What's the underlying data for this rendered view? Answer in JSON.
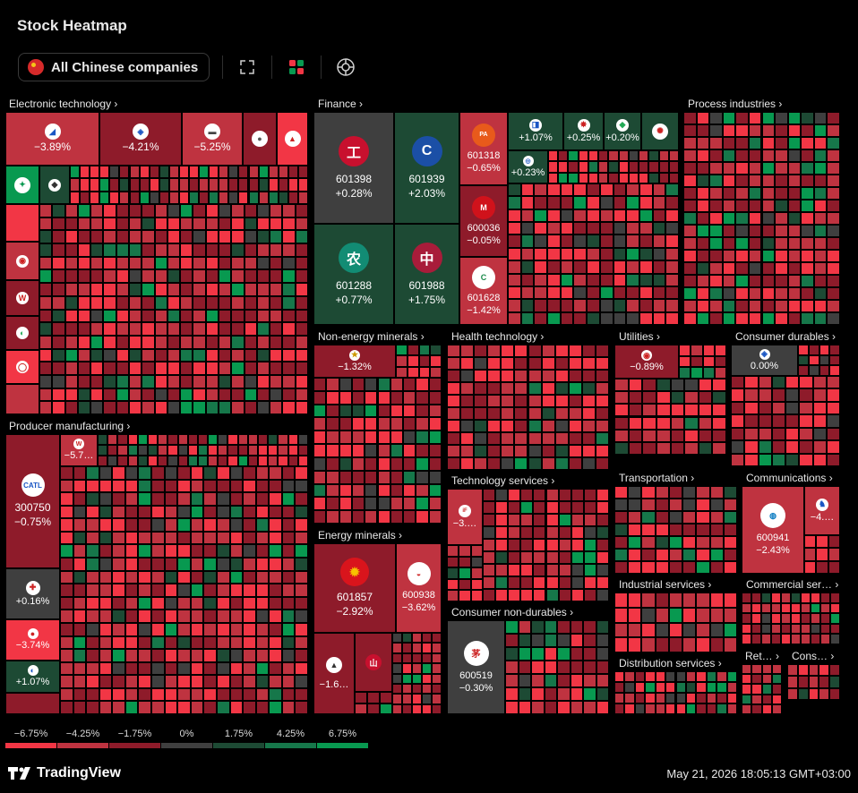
{
  "app": {
    "title": "Stock Heatmap"
  },
  "toolbar": {
    "scope_label": "All Chinese companies",
    "icons": [
      "china-flag-icon",
      "fullscreen-icon",
      "color-palette-icon",
      "crosshair-icon"
    ]
  },
  "colors": {
    "dark_red": "#8e1b2a",
    "mid_red": "#bf3340",
    "bright_red": "#f23645",
    "neutral": "#3f3f3f",
    "dark_green": "#1d4a34",
    "mid_green": "#16774a",
    "bright_green": "#089950"
  },
  "sectors": {
    "electronic_technology": {
      "label": "Electronic technology ›"
    },
    "finance": {
      "label": "Finance ›"
    },
    "process_industries": {
      "label": "Process industries ›"
    },
    "producer_manufacturing": {
      "label": "Producer manufacturing ›"
    },
    "non_energy_minerals": {
      "label": "Non-energy minerals ›"
    },
    "health_technology": {
      "label": "Health technology ›"
    },
    "utilities": {
      "label": "Utilities ›"
    },
    "consumer_durables": {
      "label": "Consumer durables ›"
    },
    "technology_services": {
      "label": "Technology services ›"
    },
    "transportation": {
      "label": "Transportation ›"
    },
    "communications": {
      "label": "Communications ›"
    },
    "energy_minerals": {
      "label": "Energy minerals ›"
    },
    "industrial_services": {
      "label": "Industrial services ›"
    },
    "commercial_services": {
      "label": "Commercial ser… ›"
    },
    "consumer_non_durables": {
      "label": "Consumer non-durables ›"
    },
    "distribution_services": {
      "label": "Distribution services ›"
    },
    "retail_trade": {
      "label": "Ret… ›"
    },
    "consumer_services": {
      "label": "Cons… ›"
    }
  },
  "tiles": {
    "et1": {
      "change": "−3.89%"
    },
    "et2": {
      "change": "−4.21%"
    },
    "et3": {
      "change": "−5.25%"
    },
    "fin1": {
      "symbol": "601398",
      "change": "+0.28%"
    },
    "fin2": {
      "symbol": "601939",
      "change": "+2.03%"
    },
    "fin3": {
      "symbol": "601288",
      "change": "+0.77%"
    },
    "fin4": {
      "symbol": "601988",
      "change": "+1.75%"
    },
    "fin5": {
      "symbol": "601318",
      "change": "−0.65%"
    },
    "fin6": {
      "symbol": "600036",
      "change": "−0.05%"
    },
    "fin7": {
      "symbol": "601628",
      "change": "−1.42%"
    },
    "fin8": {
      "change": "+1.07%"
    },
    "fin9": {
      "change": "+0.25%"
    },
    "fin10": {
      "change": "+0.20%"
    },
    "fin11": {
      "change": "+0.23%"
    },
    "pm1": {
      "symbol": "300750",
      "change": "−0.75%"
    },
    "pm2": {
      "change": "−5.7…"
    },
    "pm3": {
      "change": "+0.16%"
    },
    "pm4": {
      "change": "−3.74%"
    },
    "pm5": {
      "change": "+1.07%"
    },
    "nem1": {
      "change": "−1.32%"
    },
    "ut1": {
      "change": "−0.89%"
    },
    "cd1": {
      "change": "0.00%"
    },
    "ts1": {
      "change": "−3.…"
    },
    "com1": {
      "symbol": "600941",
      "change": "−2.43%"
    },
    "com2": {
      "change": "−4.…"
    },
    "em1": {
      "symbol": "601857",
      "change": "−2.92%"
    },
    "em2": {
      "symbol": "600938",
      "change": "−3.62%"
    },
    "em3": {
      "change": "−1.6…"
    },
    "cnd1": {
      "symbol": "600519",
      "change": "−0.30%"
    }
  },
  "legend": [
    "−6.75%",
    "−4.25%",
    "−1.75%",
    "0%",
    "1.75%",
    "4.25%",
    "6.75%"
  ],
  "footer": {
    "brand": "TradingView",
    "timestamp": "May 21, 2026 18:05:13 GMT+03:00"
  }
}
